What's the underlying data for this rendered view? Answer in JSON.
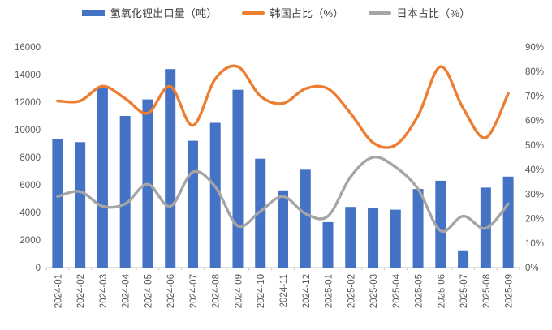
{
  "legend": {
    "items": [
      {
        "label": "氢氧化锂出口量（吨）",
        "marker": "bar",
        "color": "#4472C4"
      },
      {
        "label": "韩国占比（%）",
        "marker": "line",
        "color": "#ED7D31"
      },
      {
        "label": "日本占比（%）",
        "marker": "line",
        "color": "#A5A5A5"
      }
    ]
  },
  "chart_data": {
    "type": "bar+line combo",
    "title": "",
    "categories": [
      "2024-01",
      "2024-02",
      "2024-03",
      "2024-04",
      "2024-05",
      "2024-06",
      "2024-07",
      "2024-08",
      "2024-09",
      "2024-10",
      "2024-11",
      "2024-12",
      "2025-01",
      "2025-02",
      "2025-03",
      "2025-04",
      "2025-05",
      "2025-06",
      "2025-07",
      "2025-08",
      "2025-09"
    ],
    "series": [
      {
        "name": "氢氧化锂出口量（吨）",
        "type": "bar",
        "axis": "left",
        "color": "#4472C4",
        "values": [
          9300,
          9100,
          13000,
          11000,
          12200,
          14400,
          9200,
          10500,
          12900,
          7900,
          5600,
          7100,
          3300,
          4400,
          4300,
          4200,
          5700,
          6300,
          1250,
          5800,
          6600
        ]
      },
      {
        "name": "韩国占比（%）",
        "type": "line",
        "axis": "right",
        "color": "#ED7D31",
        "values": [
          68,
          68,
          74,
          69,
          63,
          74,
          58,
          77,
          82,
          70,
          67,
          73,
          73,
          63,
          51,
          50,
          62,
          82,
          65,
          53,
          71
        ]
      },
      {
        "name": "日本占比（%）",
        "type": "line",
        "axis": "right",
        "color": "#A5A5A5",
        "values": [
          29,
          31,
          25,
          26,
          34,
          25,
          39,
          33,
          17,
          23,
          29,
          22,
          21,
          37,
          45,
          41,
          32,
          15,
          21,
          16,
          26
        ]
      }
    ],
    "left_axis": {
      "min": 0,
      "max": 16000,
      "step": 2000,
      "tick_labels": [
        "0",
        "2000",
        "4000",
        "6000",
        "8000",
        "10000",
        "12000",
        "14000",
        "16000"
      ]
    },
    "right_axis": {
      "min": 0,
      "max": 90,
      "step": 10,
      "tick_labels": [
        "0%",
        "10%",
        "20%",
        "30%",
        "40%",
        "50%",
        "60%",
        "70%",
        "80%",
        "90%"
      ]
    },
    "grid": false,
    "legend_position": "top",
    "x_label_rotation": -90,
    "smoothed_lines": true
  },
  "colors": {
    "bar_blue": "#4472C4",
    "line_orange": "#ED7D31",
    "line_gray": "#A5A5A5",
    "axis_text": "#595959",
    "legend_text": "#404040",
    "axis_line": "#D0CECE"
  }
}
